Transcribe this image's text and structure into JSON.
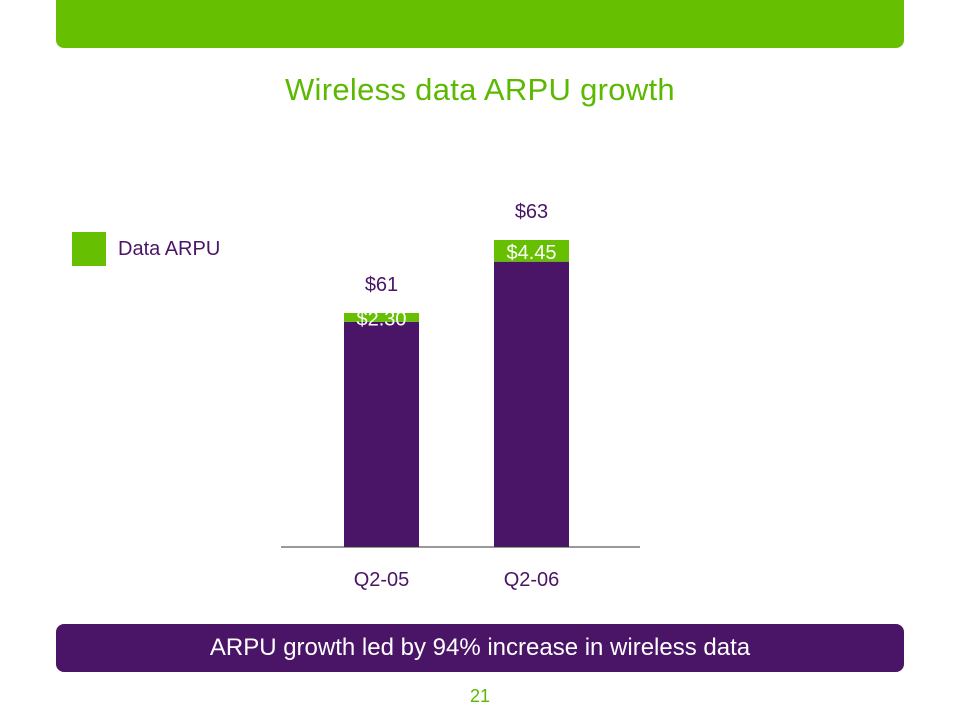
{
  "slide": {
    "title": "Wireless data ARPU growth",
    "banner": "ARPU growth led by 94% increase in wireless data",
    "page_number": "21"
  },
  "colors": {
    "accent_green": "#66bf00",
    "title_green": "#5cb800",
    "purple": "#4a1567",
    "white": "#ffffff"
  },
  "chart_data": {
    "type": "bar",
    "stacked": true,
    "categories": [
      "Q2-05",
      "Q2-06"
    ],
    "series": [
      {
        "values": [
          58.7,
          58.55
        ],
        "color": "#4a1567"
      },
      {
        "name": "Data ARPU",
        "values": [
          2.3,
          4.45
        ],
        "color": "#66bf00"
      }
    ],
    "totals": [
      61,
      63
    ],
    "total_labels": [
      "$61",
      "$63"
    ],
    "segment_labels": [
      "$2.30",
      "$4.45"
    ],
    "legend": {
      "label": "Data ARPU",
      "position": "left"
    },
    "grid": false
  }
}
